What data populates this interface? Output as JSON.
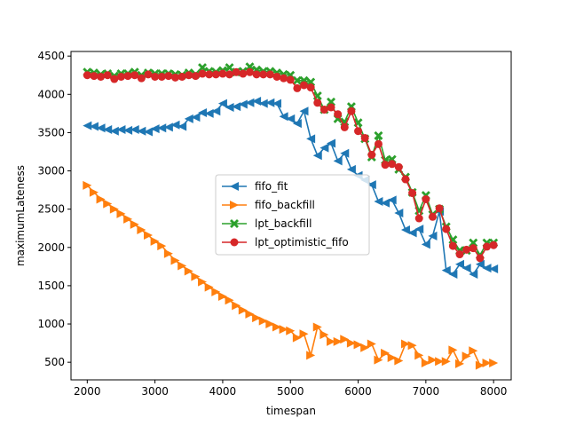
{
  "chart_data": {
    "type": "line",
    "xlabel": "timespan",
    "ylabel": "maximumLateness",
    "xlim": [
      1760,
      8260
    ],
    "ylim": [
      270,
      4560
    ],
    "xticks": [
      2000,
      3000,
      4000,
      5000,
      6000,
      7000,
      8000
    ],
    "yticks": [
      500,
      1000,
      1500,
      2000,
      2500,
      3000,
      3500,
      4000,
      4500
    ],
    "legend_position": "center",
    "x": [
      2000,
      2100,
      2200,
      2300,
      2400,
      2500,
      2600,
      2700,
      2800,
      2900,
      3000,
      3100,
      3200,
      3300,
      3400,
      3500,
      3600,
      3700,
      3800,
      3900,
      4000,
      4100,
      4200,
      4300,
      4400,
      4500,
      4600,
      4700,
      4800,
      4900,
      5000,
      5100,
      5200,
      5300,
      5400,
      5500,
      5600,
      5700,
      5800,
      5900,
      6000,
      6100,
      6200,
      6300,
      6400,
      6500,
      6600,
      6700,
      6800,
      6900,
      7000,
      7100,
      7200,
      7300,
      7400,
      7500,
      7600,
      7700,
      7800,
      7900,
      8000
    ],
    "series": [
      {
        "name": "fifo_fit",
        "color": "#1f77b4",
        "marker": "triangle-left",
        "values": [
          3590,
          3580,
          3560,
          3540,
          3520,
          3540,
          3530,
          3540,
          3520,
          3510,
          3550,
          3560,
          3570,
          3600,
          3580,
          3680,
          3700,
          3760,
          3750,
          3780,
          3880,
          3830,
          3840,
          3870,
          3890,
          3910,
          3880,
          3890,
          3880,
          3710,
          3680,
          3620,
          3780,
          3420,
          3200,
          3300,
          3360,
          3130,
          3230,
          3020,
          2940,
          2880,
          2820,
          2600,
          2580,
          2620,
          2450,
          2230,
          2190,
          2240,
          2040,
          2150,
          2470,
          1700,
          1650,
          1780,
          1730,
          1650,
          1780,
          1730,
          1720
        ]
      },
      {
        "name": "fifo_backfill",
        "color": "#ff7f0e",
        "marker": "triangle-right",
        "values": [
          2810,
          2720,
          2630,
          2570,
          2500,
          2440,
          2370,
          2300,
          2230,
          2160,
          2080,
          2020,
          1920,
          1830,
          1760,
          1690,
          1620,
          1550,
          1480,
          1420,
          1360,
          1310,
          1240,
          1180,
          1130,
          1080,
          1040,
          1000,
          960,
          930,
          910,
          820,
          870,
          590,
          960,
          860,
          770,
          770,
          800,
          750,
          730,
          690,
          740,
          530,
          620,
          560,
          520,
          740,
          720,
          590,
          490,
          530,
          510,
          510,
          660,
          480,
          580,
          650,
          460,
          490,
          490
        ]
      },
      {
        "name": "lpt_backfill",
        "color": "#2ca02c",
        "marker": "x-filled",
        "values": [
          4290,
          4280,
          4260,
          4270,
          4240,
          4270,
          4270,
          4290,
          4250,
          4280,
          4270,
          4270,
          4270,
          4260,
          4250,
          4280,
          4260,
          4350,
          4300,
          4290,
          4310,
          4350,
          4290,
          4300,
          4360,
          4320,
          4300,
          4300,
          4280,
          4260,
          4250,
          4180,
          4180,
          4160,
          3980,
          3800,
          3900,
          3680,
          3640,
          3840,
          3630,
          3420,
          3180,
          3460,
          3140,
          3150,
          3020,
          2920,
          2720,
          2480,
          2680,
          2430,
          2500,
          2270,
          2100,
          1960,
          1960,
          2060,
          1900,
          2060,
          2060
        ]
      },
      {
        "name": "lpt_optimistic_fifo",
        "color": "#d62728",
        "marker": "circle",
        "values": [
          4250,
          4240,
          4230,
          4250,
          4200,
          4230,
          4240,
          4250,
          4210,
          4260,
          4230,
          4230,
          4240,
          4220,
          4230,
          4250,
          4240,
          4270,
          4260,
          4260,
          4270,
          4260,
          4290,
          4270,
          4290,
          4260,
          4260,
          4260,
          4230,
          4210,
          4190,
          4080,
          4120,
          4090,
          3890,
          3800,
          3830,
          3740,
          3570,
          3780,
          3520,
          3430,
          3210,
          3350,
          3080,
          3090,
          3050,
          2890,
          2710,
          2380,
          2630,
          2400,
          2510,
          2240,
          2020,
          1910,
          1970,
          1990,
          1860,
          2010,
          2030
        ]
      }
    ]
  }
}
